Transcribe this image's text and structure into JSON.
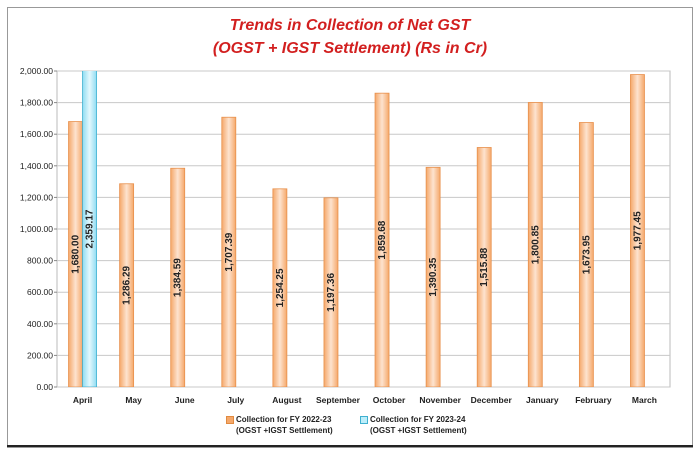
{
  "chart_data": {
    "type": "bar",
    "title": [
      "Trends in Collection of Net GST",
      "(OGST + IGST Settlement) (Rs in Cr)"
    ],
    "categories": [
      "April",
      "May",
      "June",
      "July",
      "August",
      "September",
      "October",
      "November",
      "December",
      "January",
      "February",
      "March"
    ],
    "series": [
      {
        "name": "Collection for FY 2022-23\n(OGST +IGST Settlement)",
        "color": "#f5a86a",
        "values": [
          1680.0,
          1286.29,
          1384.59,
          1707.39,
          1254.25,
          1197.36,
          1859.68,
          1390.35,
          1515.88,
          1800.85,
          1673.95,
          1977.45
        ],
        "value_labels": [
          "1,680.00",
          "1,286.29",
          "1,384.59",
          "1,707.39",
          "1,254.25",
          "1,197.36",
          "1,859.68",
          "1,390.35",
          "1,515.88",
          "1,800.85",
          "1,673.95",
          "1,977.45"
        ]
      },
      {
        "name": "Collection for FY 2023-24\n(OGST +IGST Settlement)",
        "color": "#bdeefa",
        "values": [
          2359.17,
          null,
          null,
          null,
          null,
          null,
          null,
          null,
          null,
          null,
          null,
          null
        ],
        "value_labels": [
          "2,359.17",
          null,
          null,
          null,
          null,
          null,
          null,
          null,
          null,
          null,
          null,
          null
        ]
      }
    ],
    "ylim": [
      0,
      2000
    ],
    "yticks": [
      {
        "value": 0,
        "label": "0.00"
      },
      {
        "value": 200,
        "label": "200.00"
      },
      {
        "value": 400,
        "label": "400.00"
      },
      {
        "value": 600,
        "label": "600.00"
      },
      {
        "value": 800,
        "label": "800.00"
      },
      {
        "value": 1000,
        "label": "1,000.00"
      },
      {
        "value": 1200,
        "label": "1,200.00"
      },
      {
        "value": 1400,
        "label": "1,400.00"
      },
      {
        "value": 1600,
        "label": "1,600.00"
      },
      {
        "value": 1800,
        "label": "1,800.00"
      },
      {
        "value": 2000,
        "label": "2,000.00"
      }
    ],
    "grid": true
  }
}
